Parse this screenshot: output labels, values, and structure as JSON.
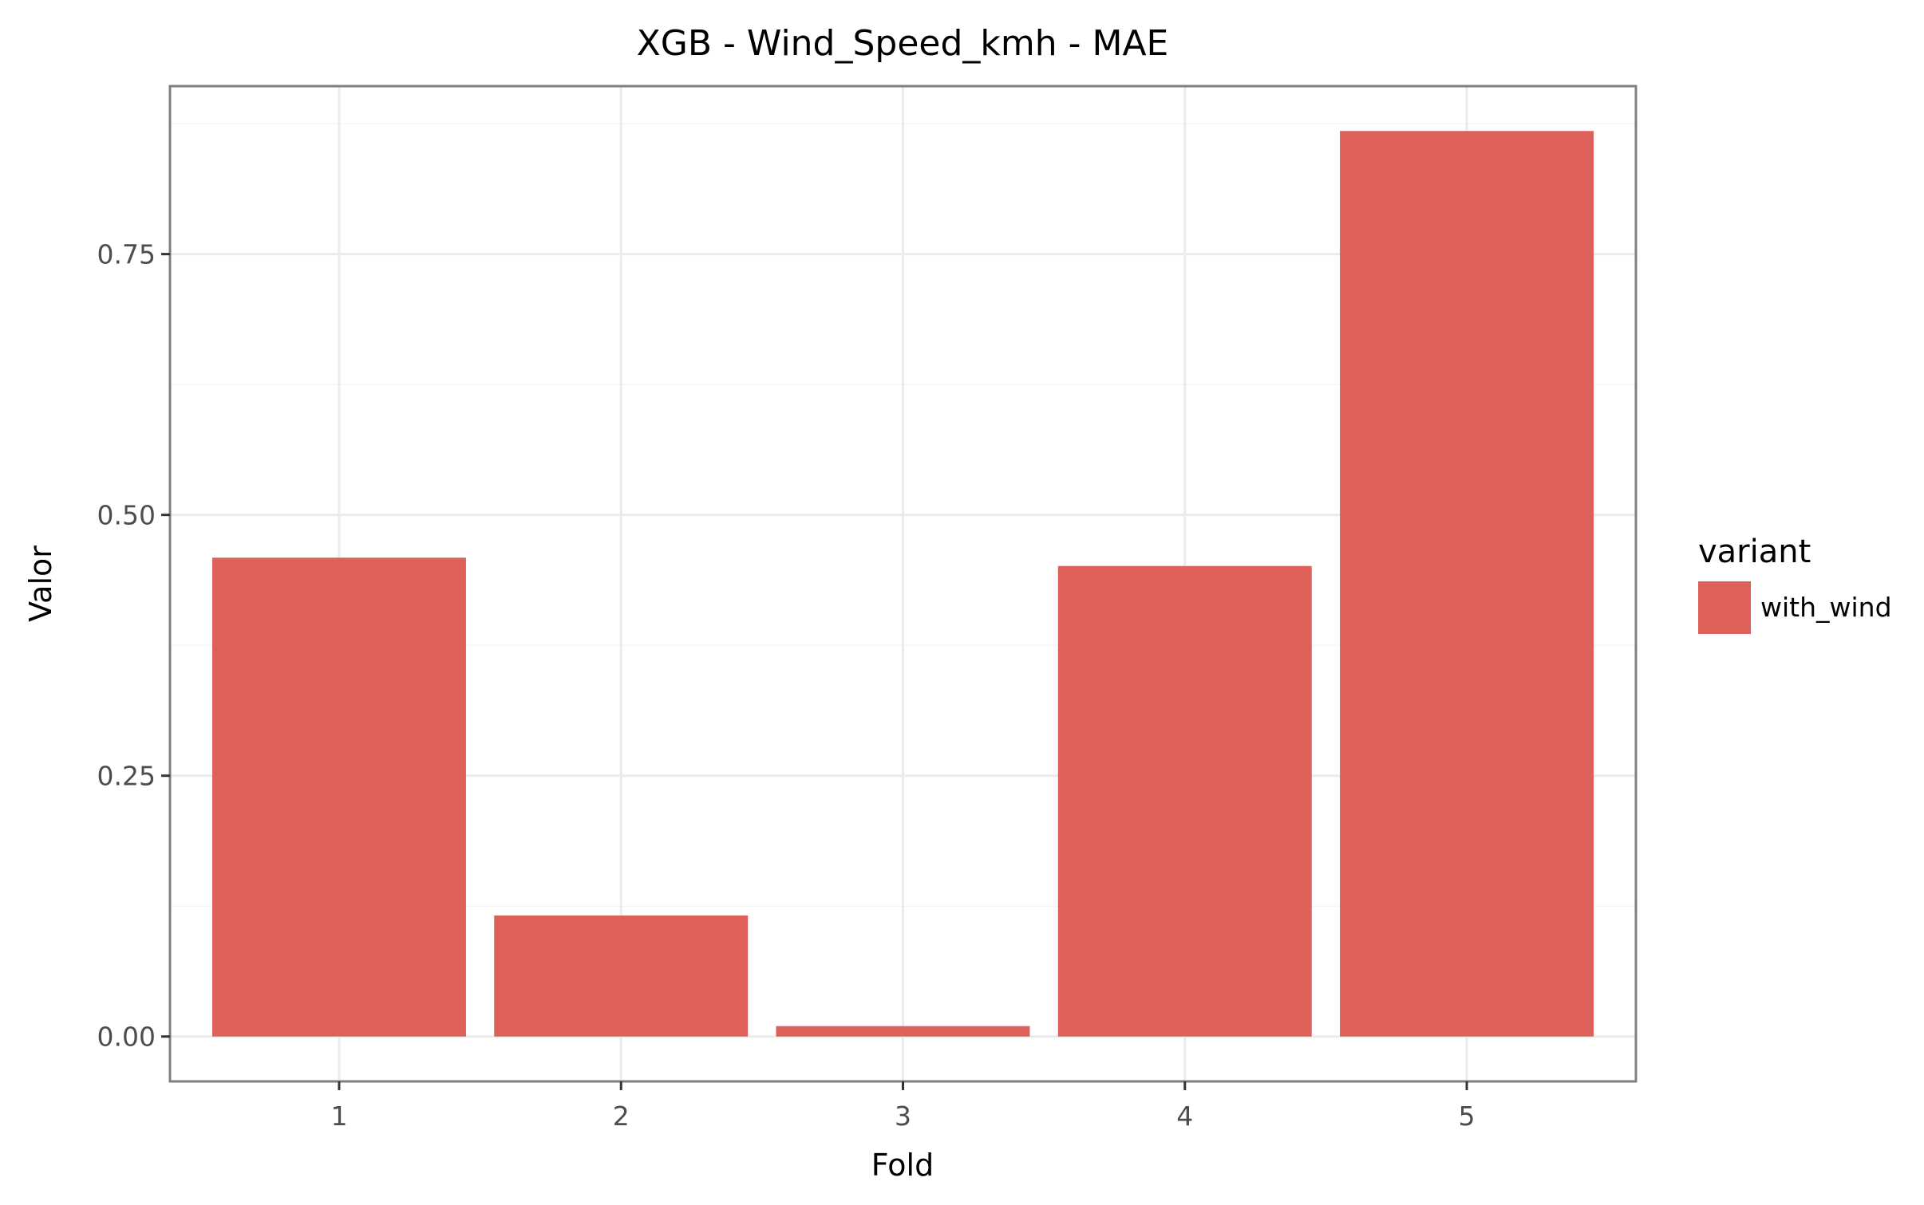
{
  "chart_data": {
    "type": "bar",
    "title": "XGB - Wind_Speed_kmh - MAE",
    "xlabel": "Fold",
    "ylabel": "Valor",
    "categories": [
      "1",
      "2",
      "3",
      "4",
      "5"
    ],
    "series": [
      {
        "name": "with_wind",
        "color": "#de6159",
        "values": [
          0.459,
          0.116,
          0.01,
          0.451,
          0.868
        ]
      }
    ],
    "y_ticks": [
      0.0,
      0.25,
      0.5,
      0.75
    ],
    "y_tick_labels": [
      "0.00",
      "0.25",
      "0.50",
      "0.75"
    ],
    "ylim": [
      -0.043,
      0.911
    ],
    "legend": {
      "title": "variant",
      "position": "right"
    },
    "grid": true
  }
}
